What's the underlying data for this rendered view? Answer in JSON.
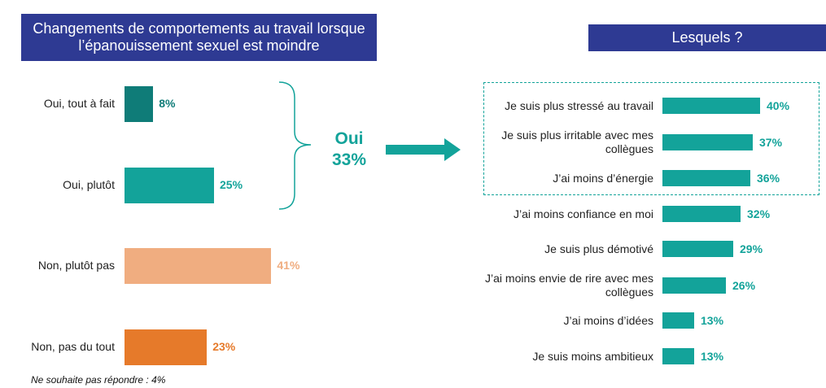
{
  "chart_data": [
    {
      "type": "bar",
      "orientation": "horizontal",
      "title": "Changements de comportements au travail lorsque l’épanouissement sexuel est moindre",
      "categories": [
        "Oui, tout à fait",
        "Oui, plutôt",
        "Non, plutôt pas",
        "Non, pas du tout"
      ],
      "values": [
        8,
        25,
        41,
        23
      ],
      "value_labels": [
        "8%",
        "25%",
        "41%",
        "23%"
      ],
      "colors": [
        "#0f7c78",
        "#13a39a",
        "#f0ad80",
        "#e67a2a"
      ],
      "group_label": "Oui",
      "group_value": "33%",
      "footnote": "Ne souhaite pas répondre : 4%"
    },
    {
      "type": "bar",
      "orientation": "horizontal",
      "title": "Lesquels ?",
      "categories": [
        [
          "Je suis plus stressé au travail"
        ],
        [
          "Je suis plus irritable avec mes",
          "collègues"
        ],
        [
          "J’ai moins d’énergie"
        ],
        [
          "J’ai moins confiance en moi"
        ],
        [
          "Je suis plus démotivé"
        ],
        [
          "J’ai moins envie de rire avec mes",
          "collègues"
        ],
        [
          "J’ai moins d’idées"
        ],
        [
          "Je suis moins ambitieux"
        ]
      ],
      "values": [
        40,
        37,
        36,
        32,
        29,
        26,
        13,
        13
      ],
      "value_labels": [
        "40%",
        "37%",
        "36%",
        "32%",
        "29%",
        "26%",
        "13%",
        "13%"
      ],
      "color": "#13a39a",
      "highlighted_top": 3
    }
  ]
}
